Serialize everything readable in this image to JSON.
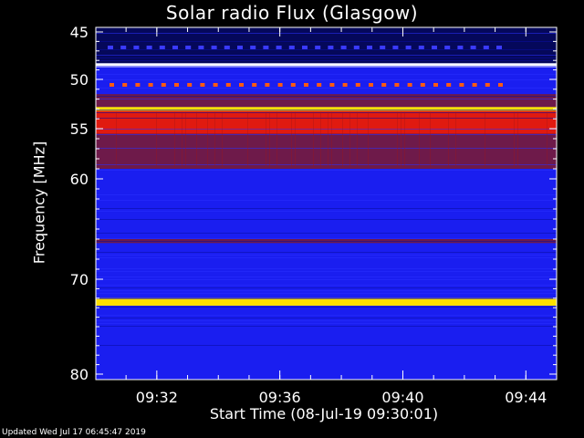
{
  "chart_data": {
    "type": "heatmap",
    "title": "Solar radio Flux (Glasgow)",
    "ylabel": "Frequency [MHz]",
    "xlabel": "Start Time (08-Jul-19 09:30:01)",
    "y_ticks": [
      "45",
      "50",
      "55",
      "60",
      "70",
      "80"
    ],
    "x_ticks": [
      "09:32",
      "09:36",
      "09:40",
      "09:44"
    ],
    "ylim": [
      45,
      80
    ],
    "xlim": [
      "09:30:01",
      "09:45:00"
    ],
    "colormap": [
      "#000033",
      "#0000ff",
      "#8b0000",
      "#ff0000",
      "#ffff00",
      "#ffffff"
    ],
    "bands": [
      {
        "from": 45.0,
        "to": 48.3,
        "level": "dark-blue"
      },
      {
        "from": 48.3,
        "to": 48.7,
        "level": "white"
      },
      {
        "from": 48.7,
        "to": 51.5,
        "level": "blue"
      },
      {
        "from": 51.5,
        "to": 52.8,
        "level": "dark-red"
      },
      {
        "from": 52.8,
        "to": 53.2,
        "level": "yellow"
      },
      {
        "from": 53.2,
        "to": 55.5,
        "level": "red"
      },
      {
        "from": 55.5,
        "to": 59.0,
        "level": "dark-red"
      },
      {
        "from": 59.0,
        "to": 66.0,
        "level": "blue"
      },
      {
        "from": 66.0,
        "to": 66.4,
        "level": "dark-red"
      },
      {
        "from": 66.4,
        "to": 72.0,
        "level": "blue"
      },
      {
        "from": 72.0,
        "to": 72.8,
        "level": "yellow"
      },
      {
        "from": 72.8,
        "to": 80.0,
        "level": "blue"
      }
    ]
  },
  "footer": {
    "updated": "Updated Wed Jul 17 06:45:47 2019"
  }
}
